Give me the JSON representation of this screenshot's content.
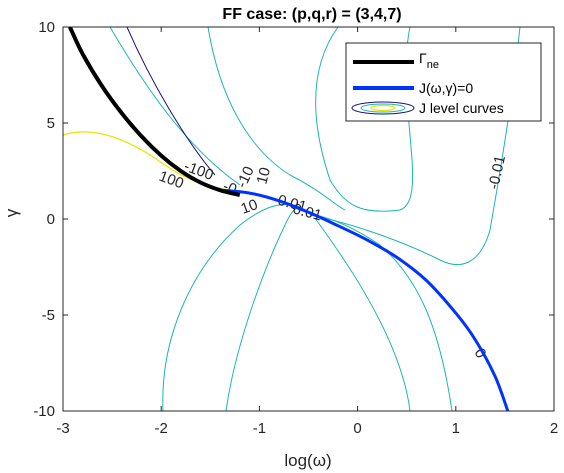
{
  "chart_data": {
    "type": "line",
    "title": "FF case: (p,q,r) = (3,4,7)",
    "xlabel": "log(ω)",
    "ylabel": "γ",
    "xlim": [
      -3,
      2
    ],
    "ylim": [
      -10,
      10
    ],
    "x_ticks": [
      "-3",
      "-2",
      "-1",
      "0",
      "1",
      "2"
    ],
    "y_ticks": [
      "10",
      "5",
      "0",
      "-5",
      "-10"
    ],
    "grid": false,
    "legend_position": "top-right",
    "legend": {
      "gamma_main": "Γ",
      "gamma_sub": "ne",
      "j_zero": "J(ω,γ)=0",
      "j_levels": "J level curves"
    },
    "colors": {
      "gamma_ne": "#000000",
      "j_zero": "#0033ff",
      "contour_teal": "#1fb5b5",
      "contour_navy": "#1a0f7a",
      "contour_yellow": "#e6e600"
    },
    "series": [
      {
        "name": "Γne",
        "x": [
          -2.93,
          -2.8,
          -2.6,
          -2.4,
          -2.2,
          -2.0,
          -1.8,
          -1.6,
          -1.4,
          -1.2
        ],
        "y": [
          10.0,
          8.6,
          6.9,
          5.5,
          4.3,
          3.3,
          2.5,
          1.9,
          1.5,
          1.25
        ]
      },
      {
        "name": "J(ω,γ)=0",
        "x": [
          -1.4,
          -1.1,
          -0.8,
          -0.5,
          -0.2,
          0.1,
          0.4,
          0.7,
          1.0,
          1.2,
          1.4,
          1.53
        ],
        "y": [
          1.5,
          1.35,
          0.95,
          0.35,
          -0.35,
          -1.1,
          -2.0,
          -3.2,
          -4.9,
          -6.3,
          -8.2,
          -10.0
        ]
      }
    ],
    "contour_labels": [
      "-100",
      "100",
      "-0",
      "10",
      "-10",
      "10",
      "-0.01",
      "0.01",
      "-0.01",
      "0"
    ]
  }
}
